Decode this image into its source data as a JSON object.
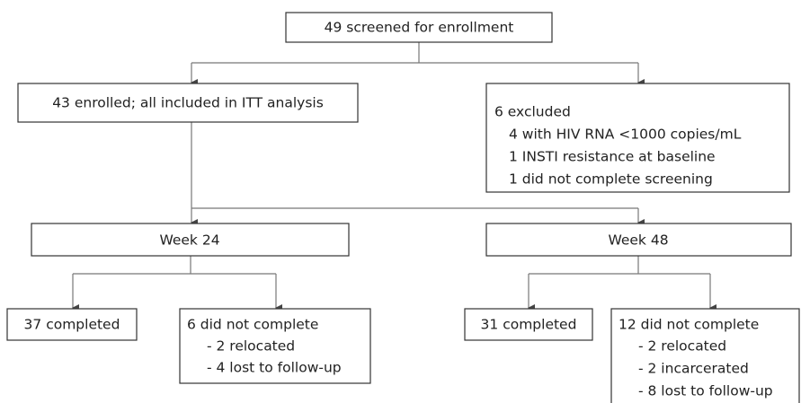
{
  "nodes": [
    {
      "label": "49 screened for enrollment"
    },
    {
      "label": "43 enrolled; all included in ITT analysis"
    },
    {
      "label": "6 excluded",
      "items": [
        "4 with HIV RNA <1000 copies/mL",
        "1 INSTI resistance at baseline",
        "1 did not complete screening"
      ]
    },
    {
      "label": "Week 24"
    },
    {
      "label": "Week 48"
    },
    {
      "label": "37 completed"
    },
    {
      "label": "6 did not complete",
      "items": [
        "- 2 relocated",
        "- 4 lost to follow-up"
      ]
    },
    {
      "label": "31 completed"
    },
    {
      "label": "12 did not complete",
      "items": [
        "- 2 relocated",
        "- 2 incarcerated",
        "- 8 lost to follow-up"
      ]
    }
  ]
}
